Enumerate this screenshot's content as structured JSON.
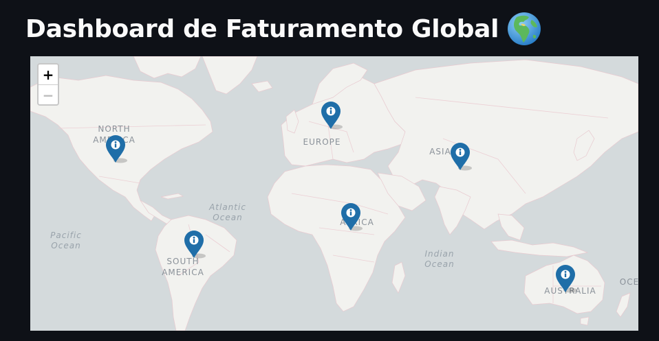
{
  "page": {
    "title": "Dashboard de Faturamento Global",
    "title_icon": "globe-africa-europe-icon"
  },
  "map": {
    "zoom_in_label": "+",
    "zoom_out_label": "−",
    "colors": {
      "water": "#d4dadc",
      "land": "#f2f2ef",
      "border": "#eccfd4",
      "marker": "#1f6ea8"
    },
    "continent_labels": [
      {
        "id": "north-america",
        "line1": "NORTH",
        "line2": "AMERICA"
      },
      {
        "id": "europe",
        "line1": "EUROPE",
        "line2": ""
      },
      {
        "id": "asia",
        "line1": "ASIA",
        "line2": ""
      },
      {
        "id": "africa",
        "line1": "AFRICA",
        "line2": ""
      },
      {
        "id": "south-america",
        "line1": "SOUTH",
        "line2": "AMERICA"
      },
      {
        "id": "australia",
        "line1": "AUSTRALIA",
        "line2": ""
      }
    ],
    "ocean_labels": [
      {
        "id": "atlantic",
        "line1": "Atlantic",
        "line2": "Ocean"
      },
      {
        "id": "pacific",
        "line1": "Pacific",
        "line2": "Ocean"
      },
      {
        "id": "indian",
        "line1": "Indian",
        "line2": "Ocean"
      },
      {
        "id": "edge",
        "line1": "OCE",
        "line2": ""
      }
    ],
    "markers": [
      {
        "id": "north-america",
        "icon": "info-icon"
      },
      {
        "id": "europe",
        "icon": "info-icon"
      },
      {
        "id": "asia",
        "icon": "info-icon"
      },
      {
        "id": "africa",
        "icon": "info-icon"
      },
      {
        "id": "south-america",
        "icon": "info-icon"
      },
      {
        "id": "australia",
        "icon": "info-icon"
      }
    ]
  }
}
